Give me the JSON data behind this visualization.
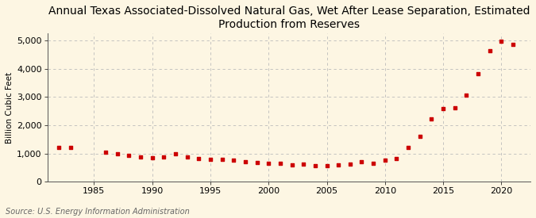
{
  "title": "Annual Texas Associated-Dissolved Natural Gas, Wet After Lease Separation, Estimated\nProduction from Reserves",
  "ylabel": "Billion Cubic Feet",
  "source": "Source: U.S. Energy Information Administration",
  "background_color": "#fdf6e3",
  "marker_color": "#cc0000",
  "grid_color": "#bbbbbb",
  "years": [
    1982,
    1983,
    1986,
    1987,
    1988,
    1989,
    1990,
    1991,
    1992,
    1993,
    1994,
    1995,
    1996,
    1997,
    1998,
    1999,
    2000,
    2001,
    2002,
    2003,
    2004,
    2005,
    2006,
    2007,
    2008,
    2009,
    2010,
    2011,
    2012,
    2013,
    2014,
    2015,
    2016,
    2017,
    2018,
    2019,
    2020,
    2021
  ],
  "values": [
    1200,
    1200,
    1050,
    980,
    940,
    880,
    840,
    860,
    990,
    880,
    810,
    790,
    790,
    750,
    700,
    690,
    650,
    640,
    600,
    610,
    575,
    570,
    590,
    610,
    700,
    640,
    770,
    820,
    1200,
    1600,
    2220,
    2580,
    2620,
    3060,
    3820,
    4650,
    4970,
    4870
  ],
  "xlim": [
    1981,
    2022.5
  ],
  "ylim": [
    0,
    5250
  ],
  "yticks": [
    0,
    1000,
    2000,
    3000,
    4000,
    5000
  ],
  "xticks": [
    1985,
    1990,
    1995,
    2000,
    2005,
    2010,
    2015,
    2020
  ],
  "title_fontsize": 10,
  "label_fontsize": 7.5,
  "tick_fontsize": 8,
  "source_fontsize": 7
}
